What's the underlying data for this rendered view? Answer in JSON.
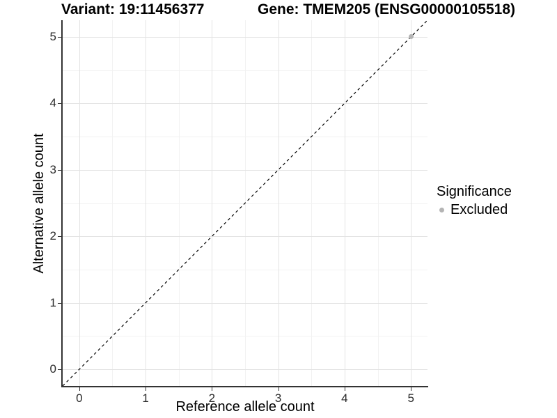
{
  "header": {
    "variant_title": "Variant: 19:11456377",
    "gene_title": "Gene: TMEM205 (ENSG00000105518)"
  },
  "axes": {
    "x": {
      "label": "Reference allele count",
      "tick_labels": [
        "0",
        "1",
        "2",
        "3",
        "4",
        "5"
      ]
    },
    "y": {
      "label": "Alternative allele count",
      "tick_labels": [
        "0",
        "1",
        "2",
        "3",
        "4",
        "5"
      ]
    }
  },
  "legend": {
    "title": "Significance",
    "items": [
      {
        "label": "Excluded",
        "color": "#b4b4b4"
      }
    ]
  },
  "chart_data": {
    "type": "scatter",
    "title": "Variant: 19:11456377 | Gene: TMEM205 (ENSG00000105518)",
    "xlabel": "Reference allele count",
    "ylabel": "Alternative allele count",
    "xlim": [
      -0.25,
      5.25
    ],
    "ylim": [
      -0.25,
      5.25
    ],
    "x_ticks": [
      0,
      1,
      2,
      3,
      4,
      5
    ],
    "y_ticks": [
      0,
      1,
      2,
      3,
      4,
      5
    ],
    "grid": "major and minor gridlines, light gray on white",
    "legend_position": "right",
    "series": [
      {
        "name": "Excluded",
        "marker": "circle",
        "color": "#b4b4b4",
        "points": [
          [
            5,
            5
          ]
        ]
      }
    ],
    "reference_line": {
      "kind": "identity y=x",
      "style": "dashed",
      "color": "#000000",
      "span": "full panel corner to corner"
    }
  },
  "colors": {
    "background": "#ffffff",
    "grid_major": "#e3e3e3",
    "grid_minor": "#f2f2f2",
    "axis_line": "#333333",
    "tick_text": "#2b2b2b",
    "title_text": "#000000",
    "excluded_point": "#b4b4b4"
  }
}
